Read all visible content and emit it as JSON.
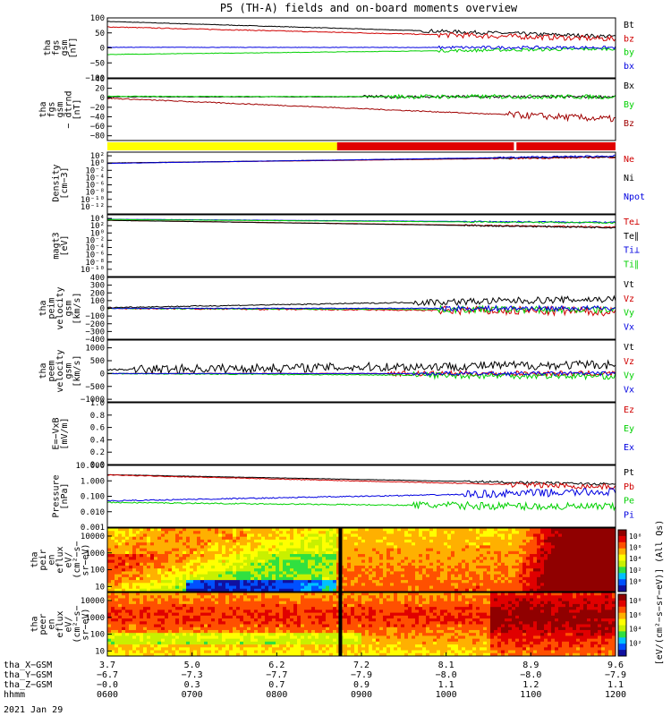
{
  "title": "P5 (TH-A) fields and on-board moments overview",
  "date_label": "2021 Jan 29",
  "colors": {
    "black": "#000000",
    "red": "#d00000",
    "green": "#00d000",
    "blue": "#0000e0",
    "yellow": "#ffff00"
  },
  "chart_data": [
    {
      "type": "line",
      "panel": "fgs-gsm",
      "ylabel_lines": [
        "tha",
        "fgs",
        "gsm",
        "[nT]"
      ],
      "ylim": [
        -100,
        100
      ],
      "yticks": [
        "100",
        "50",
        "0",
        "−50",
        "−100"
      ],
      "ytick_vals": [
        100,
        50,
        0,
        -50,
        -100
      ],
      "series": [
        {
          "name": "Bt",
          "color": "#000000",
          "start": 88,
          "end": 38,
          "noise_start": 0.62,
          "noise": 12
        },
        {
          "name": "bz",
          "color": "#d00000",
          "start": 70,
          "end": 30,
          "noise_start": 0.65,
          "noise": 18
        },
        {
          "name": "by",
          "color": "#00d000",
          "start": -22,
          "end": -3,
          "noise_start": 0.65,
          "noise": 10
        },
        {
          "name": "bx",
          "color": "#0000e0",
          "start": 2,
          "end": 1,
          "noise_start": 0.65,
          "noise": 10
        }
      ]
    },
    {
      "type": "line",
      "panel": "fgs-gsm-detrended",
      "ylabel_lines": [
        "tha",
        "fgs",
        "gsm",
        "− dtrnd",
        "[nT]"
      ],
      "ylim": [
        -90,
        40
      ],
      "yticks": [
        "40",
        "20",
        "0",
        "−20",
        "−40",
        "−60",
        "−80"
      ],
      "ytick_vals": [
        40,
        20,
        0,
        -20,
        -40,
        -60,
        -80
      ],
      "series": [
        {
          "name": "Bx",
          "color": "#000000",
          "start": 2,
          "end": 2,
          "noise_start": 0.5,
          "noise": 6
        },
        {
          "name": "By",
          "color": "#00d000",
          "start": 3,
          "end": 2,
          "noise_start": 0.55,
          "noise": 9
        },
        {
          "name": "Bz",
          "color": "#a00000",
          "start": -1,
          "end": -45,
          "noise_start": 0.78,
          "noise": 14
        }
      ]
    },
    {
      "type": "status_bar",
      "panel": "mode-bar",
      "segments": [
        {
          "from": 0,
          "to": 0.452,
          "color": "#ffff00"
        },
        {
          "from": 0.452,
          "to": 0.8,
          "color": "#e00000"
        },
        {
          "from": 0.805,
          "to": 1,
          "color": "#e00000"
        }
      ]
    },
    {
      "type": "line",
      "panel": "density",
      "scale": "log",
      "ylabel_lines": [
        "Density",
        "[cm−3]"
      ],
      "ylim": [
        1e-14,
        1000.0
      ],
      "yticks": [
        "10²",
        "10⁰",
        "10⁻²",
        "10⁻⁴",
        "10⁻⁶",
        "10⁻⁸",
        "10⁻¹⁰",
        "10⁻¹²"
      ],
      "ytick_vals": [
        100.0,
        1,
        0.01,
        0.0001,
        1e-06,
        1e-08,
        1e-10,
        1e-12
      ],
      "series": [
        {
          "name": "Ne",
          "color": "#d00000",
          "start": 1,
          "end": 40,
          "noise_start": 0.75,
          "noise": 0.4
        },
        {
          "name": "Ni",
          "color": "#000000",
          "start": 1,
          "end": 60,
          "noise_start": 0.75,
          "noise": 0.4
        },
        {
          "name": "Npot",
          "color": "#0000e0",
          "start": 0.8,
          "end": 90,
          "noise_start": 0.75,
          "noise": 0.5
        }
      ]
    },
    {
      "type": "line",
      "panel": "temperature",
      "scale": "log",
      "ylabel_lines": [
        "magt3",
        "[eV]"
      ],
      "ylim": [
        1e-12,
        100000.0
      ],
      "yticks": [
        "10⁴",
        "10²",
        "10⁰",
        "10⁻²",
        "10⁻⁴",
        "10⁻⁶",
        "10⁻⁸",
        "10⁻¹⁰"
      ],
      "ytick_vals": [
        10000.0,
        100.0,
        1,
        0.01,
        0.0001,
        1e-06,
        1e-08,
        1e-10
      ],
      "series": [
        {
          "name": "Te⊥",
          "color": "#d00000",
          "start": 3000,
          "end": 40,
          "noise_start": 0.7,
          "noise": 0.4
        },
        {
          "name": "Te∥",
          "color": "#000000",
          "start": 3000,
          "end": 30,
          "noise_start": 0.7,
          "noise": 0.4
        },
        {
          "name": "Ti⊥",
          "color": "#0000e0",
          "start": 6000,
          "end": 800,
          "noise_start": 0.7,
          "noise": 0.4
        },
        {
          "name": "Ti∥",
          "color": "#00d000",
          "start": 5000,
          "end": 600,
          "noise_start": 0.7,
          "noise": 0.4
        }
      ]
    },
    {
      "type": "line",
      "panel": "peim-velocity",
      "ylabel_lines": [
        "tha",
        "peim",
        "velocity",
        "gsm",
        "[km/s]"
      ],
      "ylim": [
        -400,
        400
      ],
      "yticks": [
        "400",
        "300",
        "200",
        "100",
        "0",
        "−100",
        "−200",
        "−300",
        "−400"
      ],
      "ytick_vals": [
        400,
        300,
        200,
        100,
        0,
        -100,
        -200,
        -300,
        -400
      ],
      "series": [
        {
          "name": "Vt",
          "color": "#000000",
          "start": 10,
          "end": 120,
          "noise_start": 0.6,
          "noise": 90
        },
        {
          "name": "Vz",
          "color": "#d00000",
          "start": 0,
          "end": -40,
          "noise_start": 0.65,
          "noise": 120
        },
        {
          "name": "Vy",
          "color": "#00d000",
          "start": 0,
          "end": -20,
          "noise_start": 0.65,
          "noise": 90
        },
        {
          "name": "Vx",
          "color": "#0000e0",
          "start": 0,
          "end": 0,
          "noise_start": 0.65,
          "noise": 70
        }
      ]
    },
    {
      "type": "line",
      "panel": "peem-velocity",
      "ylabel_lines": [
        "tha",
        "peem",
        "velocity",
        "gsm",
        "[km/s]"
      ],
      "ylim": [
        -1100,
        1300
      ],
      "yticks": [
        "1000",
        "500",
        "0",
        "−500",
        "−1000"
      ],
      "ytick_vals": [
        1000,
        500,
        0,
        -500,
        -1000
      ],
      "series": [
        {
          "name": "Vt",
          "color": "#000000",
          "start": 150,
          "end": 350,
          "noise_start": 0.05,
          "noise": 350
        },
        {
          "name": "Vz",
          "color": "#d00000",
          "start": 0,
          "end": 0,
          "noise_start": 0.55,
          "noise": 200
        },
        {
          "name": "Vy",
          "color": "#00d000",
          "start": 0,
          "end": -100,
          "noise_start": 0.6,
          "noise": 250
        },
        {
          "name": "Vx",
          "color": "#0000e0",
          "start": 0,
          "end": 0,
          "noise_start": 0.6,
          "noise": 150
        }
      ]
    },
    {
      "type": "line",
      "panel": "e-field",
      "ylabel_lines": [
        "E=−VxB",
        "[mV/m]"
      ],
      "ylim": [
        0,
        1
      ],
      "yticks": [
        "1.0",
        "0.8",
        "0.6",
        "0.4",
        "0.2",
        "0.0"
      ],
      "ytick_vals": [
        1,
        0.8,
        0.6,
        0.4,
        0.2,
        0
      ],
      "series": [
        {
          "name": "Ez",
          "color": "#d00000"
        },
        {
          "name": "Ey",
          "color": "#00d000"
        },
        {
          "name": "Ex",
          "color": "#0000e0"
        }
      ]
    },
    {
      "type": "line",
      "panel": "pressure",
      "scale": "log",
      "ylabel_lines": [
        "Pressure",
        "[nPa]"
      ],
      "ylim": [
        0.001,
        10
      ],
      "yticks": [
        "10.000",
        "1.000",
        "0.100",
        "0.010",
        "0.001"
      ],
      "ytick_vals": [
        10,
        1,
        0.1,
        0.01,
        0.001
      ],
      "series": [
        {
          "name": "Pt",
          "color": "#000000",
          "start": 2.5,
          "end": 0.6,
          "noise_start": 0.7,
          "noise": 0.15
        },
        {
          "name": "Pb",
          "color": "#d00000",
          "start": 2.4,
          "end": 0.4,
          "noise_start": 0.78,
          "noise": 0.35
        },
        {
          "name": "Pe",
          "color": "#00d000",
          "start": 0.04,
          "end": 0.02,
          "noise_start": 0.6,
          "noise": 0.5
        },
        {
          "name": "Pi",
          "color": "#0000e0",
          "start": 0.05,
          "end": 0.2,
          "noise_start": 0.7,
          "noise": 0.5
        }
      ]
    },
    {
      "type": "heatmap",
      "panel": "peir-en-eflux",
      "scale": "log",
      "ylabel_lines": [
        "tha",
        "peir",
        "en",
        "eflux",
        "eV/",
        "(cm²−s−",
        "sr−eV)"
      ],
      "ylim": [
        5,
        30000
      ],
      "yticks": [
        "10000",
        "1000",
        "100",
        "10"
      ],
      "ytick_vals": [
        10000,
        1000,
        100,
        10
      ]
    },
    {
      "type": "heatmap",
      "panel": "peer-en-eflux",
      "scale": "log",
      "ylabel_lines": [
        "tha",
        "peer",
        "en",
        "eflux",
        "eV/",
        "(cm²−s−",
        "sr−eV)"
      ],
      "ylim": [
        5,
        30000
      ],
      "yticks": [
        "10000",
        "1000",
        "100",
        "10"
      ],
      "ytick_vals": [
        10000,
        1000,
        100,
        10
      ]
    }
  ],
  "colorbar": {
    "label": "[eV/(cm²−s−sr−eV)] (All Qs)",
    "ticks_top": [
      "10⁸",
      "10⁶",
      "10⁴",
      "10²",
      "10⁰"
    ],
    "ticks_bottom": [
      "10⁸",
      "10⁶",
      "10⁴",
      "10²"
    ]
  },
  "x_axis": {
    "row_labels": [
      "tha_X−GSM",
      "tha_Y−GSM",
      "tha_Z−GSM",
      "hhmm"
    ],
    "columns": [
      {
        "X": "3.7",
        "Y": "−6.7",
        "Z": "−0.0",
        "hhmm": "0600"
      },
      {
        "X": "5.0",
        "Y": "−7.3",
        "Z": "0.3",
        "hhmm": "0700"
      },
      {
        "X": "6.2",
        "Y": "−7.7",
        "Z": "0.7",
        "hhmm": "0800"
      },
      {
        "X": "7.2",
        "Y": "−7.9",
        "Z": "0.9",
        "hhmm": "0900"
      },
      {
        "X": "8.1",
        "Y": "−8.0",
        "Z": "1.1",
        "hhmm": "1000"
      },
      {
        "X": "8.9",
        "Y": "−8.0",
        "Z": "1.2",
        "hhmm": "1100"
      },
      {
        "X": "9.6",
        "Y": "−7.9",
        "Z": "1.1",
        "hhmm": "1200"
      }
    ]
  }
}
